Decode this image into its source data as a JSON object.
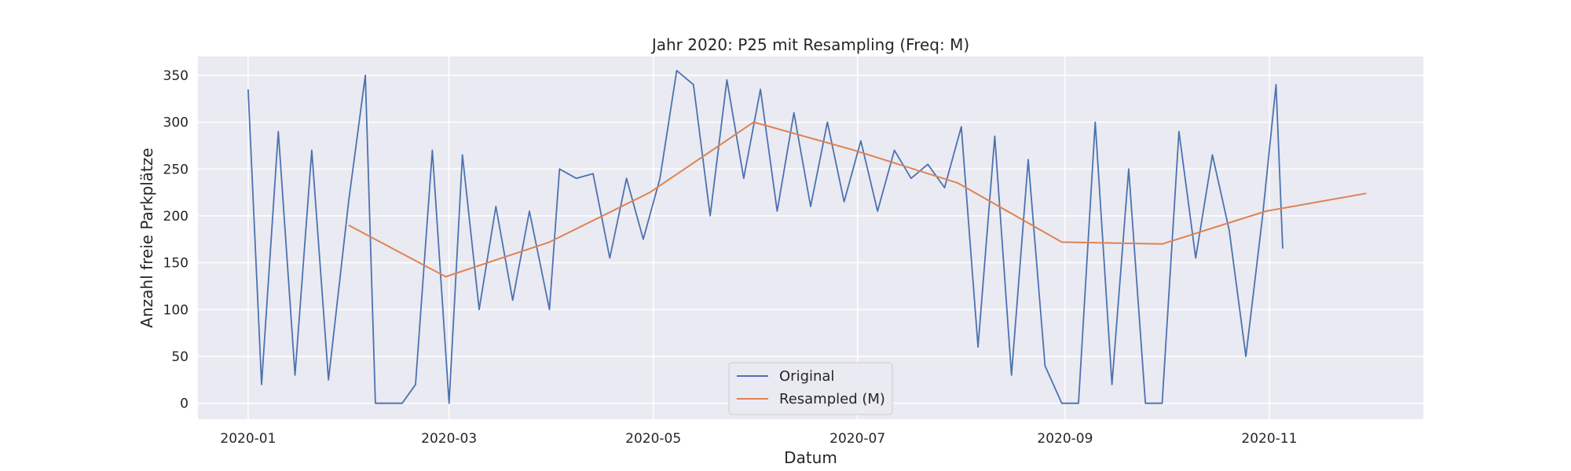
{
  "chart_data": {
    "type": "line",
    "title": "Jahr 2020: P25 mit Resampling (Freq: M)",
    "xlabel": "Datum",
    "ylabel": "Anzahl freie Parkplätze",
    "xlim": [
      "2019-12-17",
      "2020-12-17"
    ],
    "ylim": [
      -17,
      370
    ],
    "x_ticks": [
      "2020-01",
      "2020-03",
      "2020-05",
      "2020-07",
      "2020-09",
      "2020-11"
    ],
    "y_ticks": [
      0,
      50,
      100,
      150,
      200,
      250,
      300,
      350
    ],
    "grid": true,
    "legend_position": "lower center",
    "colors": {
      "Original": "#4c72b0",
      "Resampled (M)": "#dd8452",
      "background": "#eaeaf2",
      "grid": "#ffffff"
    },
    "series": [
      {
        "name": "Original",
        "note": "dense time series (sampled values)",
        "x": [
          "2020-01-01",
          "2020-01-05",
          "2020-01-10",
          "2020-01-15",
          "2020-01-20",
          "2020-01-25",
          "2020-01-31",
          "2020-02-05",
          "2020-02-08",
          "2020-02-12",
          "2020-02-16",
          "2020-02-20",
          "2020-02-25",
          "2020-03-01",
          "2020-03-05",
          "2020-03-10",
          "2020-03-15",
          "2020-03-20",
          "2020-03-25",
          "2020-03-31",
          "2020-04-03",
          "2020-04-08",
          "2020-04-13",
          "2020-04-18",
          "2020-04-23",
          "2020-04-28",
          "2020-05-03",
          "2020-05-08",
          "2020-05-13",
          "2020-05-18",
          "2020-05-23",
          "2020-05-28",
          "2020-06-02",
          "2020-06-07",
          "2020-06-12",
          "2020-06-17",
          "2020-06-22",
          "2020-06-27",
          "2020-07-02",
          "2020-07-07",
          "2020-07-12",
          "2020-07-17",
          "2020-07-22",
          "2020-07-27",
          "2020-08-01",
          "2020-08-06",
          "2020-08-11",
          "2020-08-16",
          "2020-08-21",
          "2020-08-26",
          "2020-08-31",
          "2020-09-05",
          "2020-09-10",
          "2020-09-15",
          "2020-09-20",
          "2020-09-25",
          "2020-09-30",
          "2020-10-05",
          "2020-10-10",
          "2020-10-15",
          "2020-10-20",
          "2020-10-25",
          "2020-10-30",
          "2020-11-03",
          "2020-11-05"
        ],
        "y": [
          335,
          20,
          290,
          30,
          270,
          25,
          215,
          350,
          0,
          0,
          0,
          20,
          270,
          0,
          265,
          100,
          210,
          110,
          205,
          100,
          250,
          240,
          245,
          155,
          240,
          175,
          240,
          355,
          340,
          200,
          345,
          240,
          335,
          205,
          310,
          210,
          300,
          215,
          280,
          205,
          270,
          240,
          255,
          230,
          295,
          60,
          285,
          30,
          260,
          40,
          0,
          0,
          300,
          20,
          250,
          0,
          0,
          290,
          155,
          265,
          185,
          50,
          200,
          340,
          165
        ]
      },
      {
        "name": "Resampled (M)",
        "x": [
          "2020-01-31",
          "2020-02-29",
          "2020-03-31",
          "2020-04-30",
          "2020-05-31",
          "2020-06-30",
          "2020-07-31",
          "2020-08-31",
          "2020-09-30",
          "2020-10-31",
          "2020-11-30"
        ],
        "y": [
          190,
          135,
          172,
          225,
          300,
          270,
          235,
          172,
          170,
          205,
          224
        ]
      }
    ]
  }
}
